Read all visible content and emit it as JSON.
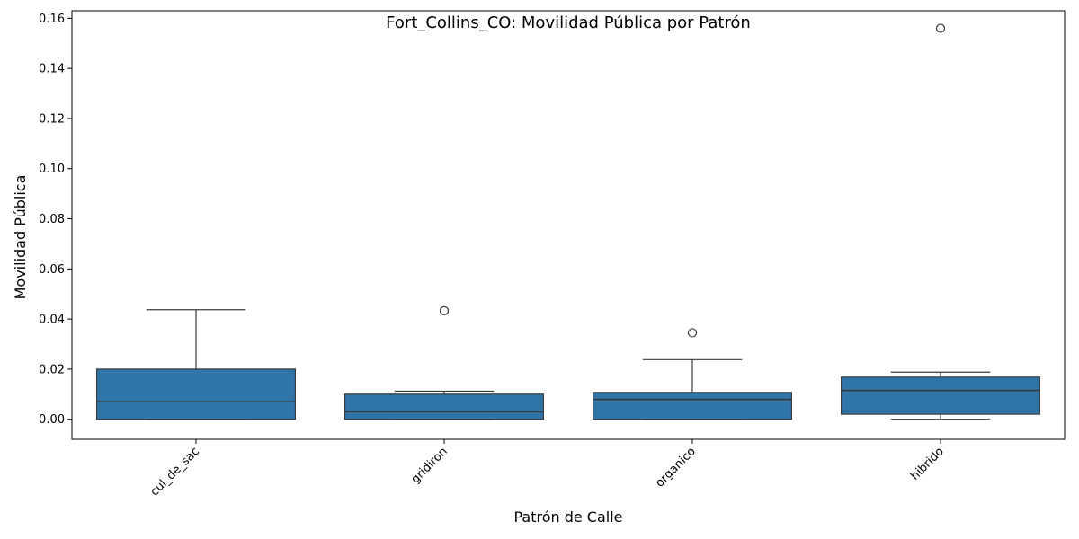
{
  "chart_data": {
    "type": "box",
    "title": "Fort_Collins_CO: Movilidad Pública por Patrón",
    "xlabel": "Patrón de Calle",
    "ylabel": "Movilidad Pública",
    "ylim": [
      -0.008,
      0.163
    ],
    "yticks": [
      0.0,
      0.02,
      0.04,
      0.06,
      0.08,
      0.1,
      0.12,
      0.14,
      0.16
    ],
    "ytick_labels": [
      "0.00",
      "0.02",
      "0.04",
      "0.06",
      "0.08",
      "0.10",
      "0.12",
      "0.14",
      "0.16"
    ],
    "categories": [
      "cul_de_sac",
      "gridiron",
      "organico",
      "hibrido"
    ],
    "boxes": [
      {
        "category": "cul_de_sac",
        "whisker_low": 0.0,
        "q1": 0.0,
        "median": 0.007,
        "q3": 0.02,
        "whisker_high": 0.0437,
        "outliers": []
      },
      {
        "category": "gridiron",
        "whisker_low": 0.0,
        "q1": 0.0,
        "median": 0.003,
        "q3": 0.01,
        "whisker_high": 0.0112,
        "outliers": [
          0.0433
        ]
      },
      {
        "category": "organico",
        "whisker_low": 0.0,
        "q1": 0.0,
        "median": 0.0079,
        "q3": 0.0107,
        "whisker_high": 0.0238,
        "outliers": [
          0.0345
        ]
      },
      {
        "category": "hibrido",
        "whisker_low": 0.0,
        "q1": 0.002,
        "median": 0.0115,
        "q3": 0.0168,
        "whisker_high": 0.0188,
        "outliers": [
          0.156
        ]
      }
    ],
    "box_color": "#2f75aa",
    "line_color": "#3a3a3a",
    "grid": false,
    "legend": "none"
  }
}
